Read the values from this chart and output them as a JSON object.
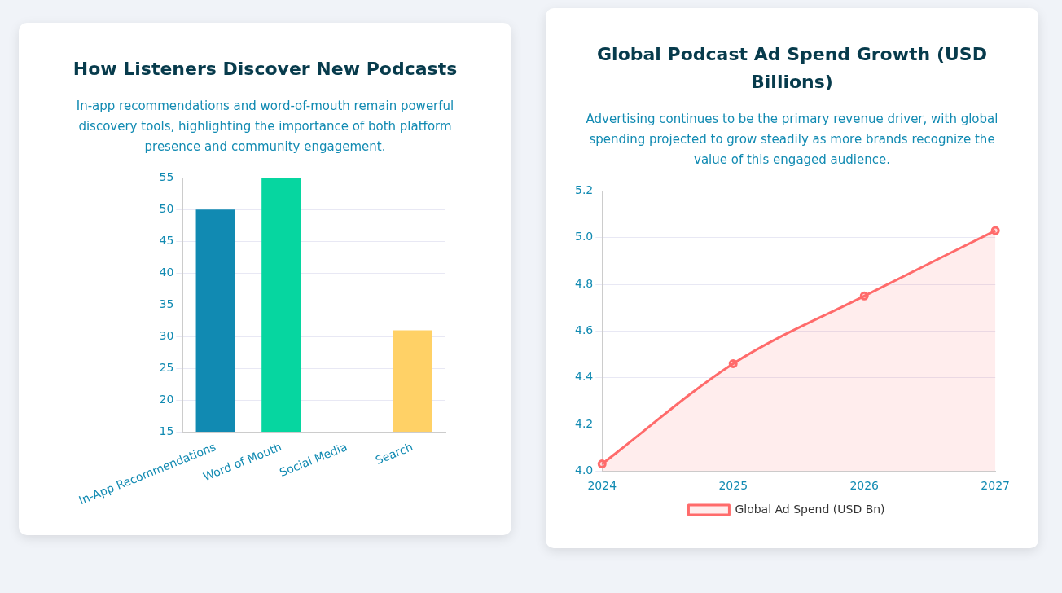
{
  "chart_data": [
    {
      "type": "bar",
      "title": "How Listeners Discover New Podcasts",
      "subtitle": "In-app recommendations and word-of-mouth remain powerful discovery tools, highlighting the importance of both platform presence and community engagement.",
      "categories": [
        "In-App Recommendations",
        "Word of Mouth",
        "Social Media",
        "Search"
      ],
      "values": [
        50,
        55,
        null,
        31
      ],
      "colors": [
        "#118ab2",
        "#06d6a0",
        null,
        "#ffd166"
      ],
      "ylim": [
        15,
        55
      ],
      "yticks": [
        15,
        20,
        25,
        30,
        35,
        40,
        45,
        50,
        55
      ],
      "grid": "y",
      "legend": false
    },
    {
      "type": "area",
      "title": "Global Podcast Ad Spend Growth (USD Billions)",
      "subtitle": "Advertising continues to be the primary revenue driver, with global spending projected to grow steadily as more brands recognize the value of this engaged audience.",
      "categories": [
        "2024",
        "2025",
        "2026",
        "2027"
      ],
      "series": [
        {
          "name": "Global Ad Spend (USD Bn)",
          "color": "#ff6b6b",
          "values": [
            4.03,
            4.46,
            4.75,
            5.03
          ]
        }
      ],
      "ylim": [
        4.0,
        5.2
      ],
      "yticks": [
        {
          "value": 4,
          "label": "4.0"
        },
        4.2,
        4.4,
        4.6,
        4.8,
        {
          "value": 5,
          "label": "5.0"
        },
        5.2
      ],
      "grid": "y",
      "legend": "bottom",
      "marker": "circle"
    }
  ]
}
